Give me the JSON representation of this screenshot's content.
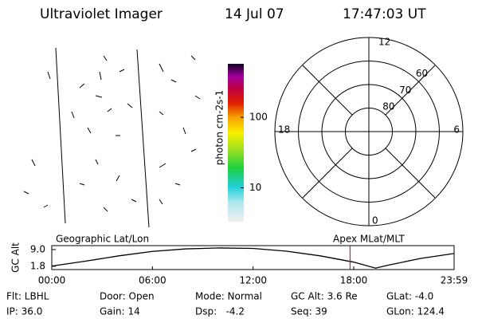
{
  "header": {
    "title": "Ultraviolet Imager",
    "date": "14 Jul 07",
    "time": "17:47:03 UT"
  },
  "colorbar": {
    "label": "photon cm-2s-1",
    "log": true,
    "clim": [
      3.3,
      575
    ],
    "ticks": [
      10,
      100
    ]
  },
  "polar": {
    "lat_range": [
      90,
      50
    ],
    "rings": [
      80,
      70,
      60
    ],
    "mlt_labels": [
      "12",
      "6",
      "0",
      "18"
    ]
  },
  "chart_data": {
    "type": "line",
    "ylabel": "GC Alt",
    "left_label": "Geographic Lat/Lon",
    "right_label": "Apex MLat/MLT",
    "x": [
      0,
      2,
      4,
      6,
      8,
      10,
      12,
      14,
      16,
      18,
      19.3,
      20,
      22,
      23.983
    ],
    "values": [
      1.9,
      4.0,
      6.3,
      8.2,
      9.3,
      9.7,
      9.5,
      8.3,
      6.3,
      3.6,
      1.0,
      2.2,
      5.2,
      7.3
    ],
    "color": "#000000",
    "current_time": 17.78,
    "current_color": "#cc0000",
    "xlim": [
      0,
      23.983
    ],
    "xticks": [
      {
        "value": 0,
        "label": "00:00"
      },
      {
        "value": 6,
        "label": "06:00"
      },
      {
        "value": 12,
        "label": "12:00"
      },
      {
        "value": 18,
        "label": "18:00"
      },
      {
        "value": 23.983,
        "label": "23:59"
      }
    ],
    "ylim": [
      0.4,
      10.7
    ],
    "yticks": [
      {
        "value": 9.0,
        "label": "9.0"
      },
      {
        "value": 1.8,
        "label": "1.8"
      }
    ]
  },
  "info": [
    [
      "Flt: LBHL",
      "Door: Open",
      "Mode: Normal",
      "GC Alt: 3.6 Re",
      "GLat: -4.0"
    ],
    [
      "IP: 36.0",
      "Gain: 14",
      "Dsp:   -4.2",
      "Seq: 39",
      "GLon: 124.4"
    ]
  ]
}
